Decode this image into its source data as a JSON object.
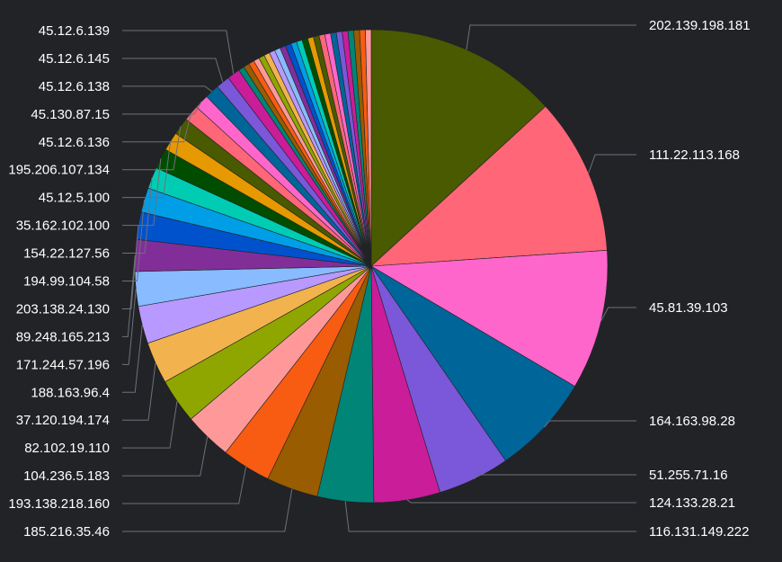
{
  "chart_data": {
    "type": "pie",
    "title": "",
    "labeled_slices": [
      {
        "label": "202.139.198.181",
        "value": 13.4,
        "color": "#4a5a00",
        "side": "right"
      },
      {
        "label": "111.22.113.168",
        "value": 10.9,
        "color": "#ff6677",
        "side": "right"
      },
      {
        "label": "45.81.39.103",
        "value": 9.7,
        "color": "#ff66cc",
        "side": "right"
      },
      {
        "label": "164.163.98.28",
        "value": 7.0,
        "color": "#006699",
        "side": "right"
      },
      {
        "label": "51.255.71.16",
        "value": 5.0,
        "color": "#7b57d9",
        "side": "right"
      },
      {
        "label": "124.133.28.21",
        "value": 4.6,
        "color": "#c91d99",
        "side": "right"
      },
      {
        "label": "116.131.149.222",
        "value": 3.9,
        "color": "#008577",
        "side": "right"
      },
      {
        "label": "185.216.35.46",
        "value": 3.6,
        "color": "#995c00",
        "side": "left"
      },
      {
        "label": "193.138.218.160",
        "value": 3.4,
        "color": "#f75c12",
        "side": "left"
      },
      {
        "label": "104.236.5.183",
        "value": 3.3,
        "color": "#ff9999",
        "side": "left"
      },
      {
        "label": "82.102.19.110",
        "value": 3.1,
        "color": "#8fa600",
        "side": "left"
      },
      {
        "label": "37.120.194.174",
        "value": 2.9,
        "color": "#f2b24d",
        "side": "left"
      },
      {
        "label": "188.163.96.4",
        "value": 2.6,
        "color": "#b899ff",
        "side": "left"
      },
      {
        "label": "171.244.57.196",
        "value": 2.4,
        "color": "#88bbff",
        "side": "left"
      },
      {
        "label": "89.248.165.213",
        "value": 2.2,
        "color": "#822e99",
        "side": "left"
      },
      {
        "label": "203.138.24.130",
        "value": 1.9,
        "color": "#0052cc",
        "side": "left"
      },
      {
        "label": "194.99.104.58",
        "value": 1.7,
        "color": "#009ee6",
        "side": "left"
      },
      {
        "label": "154.22.127.56",
        "value": 1.5,
        "color": "#00ccb3",
        "side": "left"
      },
      {
        "label": "35.162.102.100",
        "value": 1.4,
        "color": "#004d00",
        "side": "left"
      },
      {
        "label": "45.12.5.100",
        "value": 1.3,
        "color": "#e69900",
        "side": "left"
      },
      {
        "label": "195.206.107.134",
        "value": 1.2,
        "color": "#4a5a00",
        "side": "left"
      },
      {
        "label": "45.12.6.136",
        "value": 1.1,
        "color": "#ff6677",
        "side": "left"
      },
      {
        "label": "45.130.87.15",
        "value": 1.0,
        "color": "#ff66cc",
        "side": "left"
      },
      {
        "label": "45.12.6.138",
        "value": 1.0,
        "color": "#006699",
        "side": "left"
      },
      {
        "label": "45.12.6.145",
        "value": 0.95,
        "color": "#7b57d9",
        "side": "left"
      },
      {
        "label": "45.12.6.139",
        "value": 0.9,
        "color": "#c91d99",
        "side": "left"
      }
    ],
    "unlabeled_slice_colors": [
      "#008577",
      "#995c00",
      "#f75c12",
      "#ff9999",
      "#8fa600",
      "#f2b24d",
      "#b899ff",
      "#88bbff",
      "#822e99",
      "#0052cc",
      "#009ee6",
      "#00ccb3",
      "#004d00",
      "#e69900",
      "#4a5a00",
      "#ff6677",
      "#ff66cc",
      "#006699",
      "#7b57d9",
      "#c91d99",
      "#008577",
      "#995c00",
      "#f75c12",
      "#ff9999"
    ],
    "unlabeled_slice_value": 0.4
  }
}
